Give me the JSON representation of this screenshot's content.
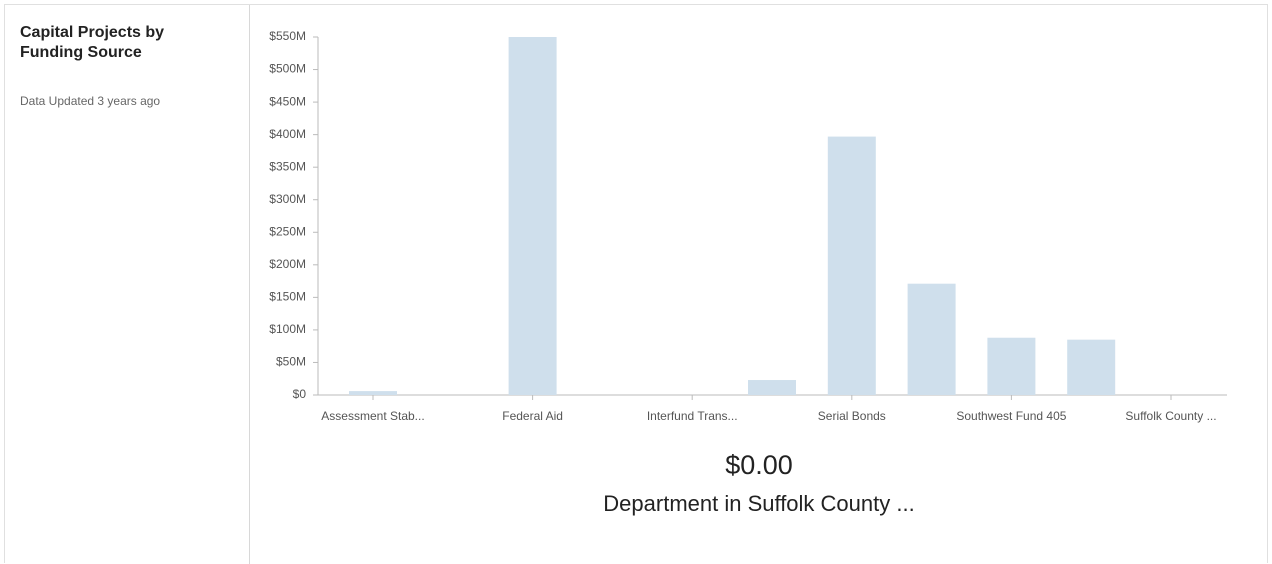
{
  "chart_data": {
    "type": "bar",
    "title": "Capital Projects by Funding Source",
    "subtitle": "Data Updated 3 years ago",
    "summary_value": "$0.00",
    "summary_label": "Department in Suffolk County ...",
    "categories": [
      "Assessment Stab...",
      null,
      "Federal Aid",
      null,
      "Interfund Trans...",
      null,
      "Serial Bonds",
      null,
      "Southwest Fund 405",
      null,
      "Suffolk County ..."
    ],
    "values": [
      6000000,
      0,
      550000000,
      0,
      0,
      23000000,
      397000000,
      171000000,
      88000000,
      85000000,
      0
    ],
    "color": "#cfdfec",
    "ylim": [
      0,
      550000000
    ],
    "yticks": [
      {
        "value": 0,
        "label": "$0"
      },
      {
        "value": 50000000,
        "label": "$50M"
      },
      {
        "value": 100000000,
        "label": "$100M"
      },
      {
        "value": 150000000,
        "label": "$150M"
      },
      {
        "value": 200000000,
        "label": "$200M"
      },
      {
        "value": 250000000,
        "label": "$250M"
      },
      {
        "value": 300000000,
        "label": "$300M"
      },
      {
        "value": 350000000,
        "label": "$350M"
      },
      {
        "value": 400000000,
        "label": "$400M"
      },
      {
        "value": 450000000,
        "label": "$450M"
      },
      {
        "value": 500000000,
        "label": "$500M"
      },
      {
        "value": 550000000,
        "label": "$550M"
      }
    ],
    "grid": false
  }
}
